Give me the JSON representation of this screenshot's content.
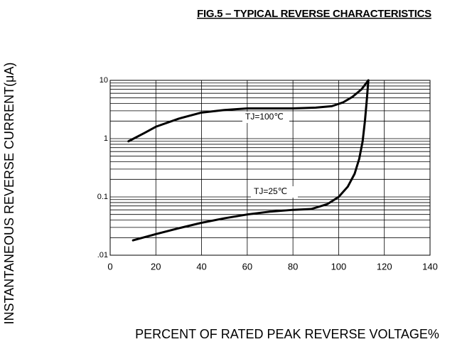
{
  "chart_data": {
    "type": "line",
    "title": "FIG.5 – TYPICAL REVERSE CHARACTERISTICS",
    "x_label": "PERCENT OF RATED PEAK REVERSE VOLTAGE%",
    "y_label": "INSTANTANEOUS REVERSE CURRENT(μA)",
    "log_y": true,
    "grid": true,
    "xlim": [
      0,
      140
    ],
    "xticks": [
      0,
      20,
      40,
      60,
      80,
      100,
      120,
      140
    ],
    "ylim": [
      0.01,
      10
    ],
    "yticks": [
      10,
      1,
      0.1,
      {
        "value": 0.01,
        "label": ".01"
      }
    ],
    "series": [
      {
        "name": "TJ=100℃",
        "color": "#000000",
        "x": [
          8,
          15,
          20,
          30,
          40,
          50,
          60,
          70,
          80,
          90,
          97,
          102,
          106,
          110,
          113
        ],
        "values": [
          0.9,
          1.25,
          1.6,
          2.2,
          2.8,
          3.1,
          3.3,
          3.3,
          3.3,
          3.4,
          3.6,
          4.2,
          5.2,
          7,
          10
        ]
      },
      {
        "name": "TJ=25℃",
        "color": "#000000",
        "x": [
          10,
          20,
          30,
          40,
          50,
          60,
          70,
          80,
          88,
          95,
          100,
          104,
          107,
          109,
          110.5,
          111.5,
          112.3,
          113
        ],
        "values": [
          0.018,
          0.023,
          0.029,
          0.036,
          0.043,
          0.05,
          0.056,
          0.06,
          0.062,
          0.075,
          0.1,
          0.15,
          0.25,
          0.45,
          0.9,
          2,
          4.5,
          10
        ]
      }
    ]
  }
}
